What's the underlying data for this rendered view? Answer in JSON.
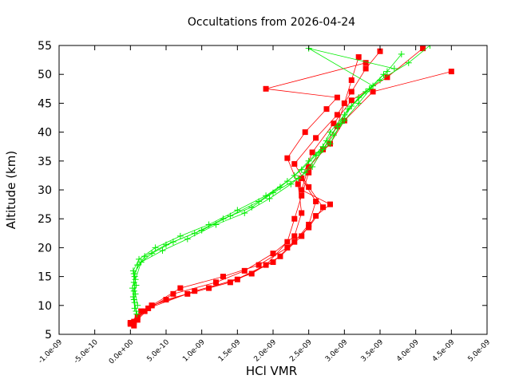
{
  "chart_data": {
    "type": "scatter",
    "title": "Occultations from 2026-04-24",
    "xlabel": "HCl VMR",
    "ylabel": "Altitude (km)",
    "xlim": [
      -1e-09,
      5e-09
    ],
    "ylim": [
      5,
      55
    ],
    "grid": false,
    "legend": "none",
    "x_tick_values": [
      -1e-09,
      -5e-10,
      0,
      5e-10,
      1e-09,
      1.5e-09,
      2e-09,
      2.5e-09,
      3e-09,
      3.5e-09,
      4e-09,
      4.5e-09,
      5e-09
    ],
    "x_tick_labels": [
      "-1.0e-09",
      "-5.0e-10",
      "0.0e+00",
      "5.0e-10",
      "1.0e-09",
      "1.5e-09",
      "2.0e-09",
      "2.5e-09",
      "3.0e-09",
      "3.5e-09",
      "4.0e-09",
      "4.5e-09",
      "5.0e-09"
    ],
    "y_tick_values": [
      5,
      10,
      15,
      20,
      25,
      30,
      35,
      40,
      45,
      50,
      55
    ],
    "y_tick_labels": [
      "5",
      "10",
      "15",
      "20",
      "25",
      "30",
      "35",
      "40",
      "45",
      "50",
      "55"
    ],
    "series": [
      {
        "marker": "square",
        "color": "#ff0000",
        "profiles": [
          {
            "x": [
              5e-11,
              1e-10,
              3e-10,
              8e-10,
              1.4e-09,
              1.9e-09,
              2.2e-09,
              2.3e-09,
              2.4e-09,
              2.5e-09,
              2.7e-09,
              2.9e-09,
              3e-09,
              3.1e-09,
              3.2e-09
            ],
            "y": [
              6.5,
              8,
              10,
              12,
              14,
              17,
              21,
              25,
              29,
              33,
              37,
              41,
              45,
              49,
              53
            ]
          },
          {
            "x": [
              0.0,
              1.5e-10,
              5e-10,
              1.1e-09,
              1.7e-09,
              2.1e-09,
              2.4e-09,
              2.6e-09,
              2.8e-09,
              2.4e-09,
              2.5e-09,
              2.8e-09,
              3e-09,
              3.4e-09,
              4.5e-09
            ],
            "y": [
              7,
              9,
              11,
              13,
              15.5,
              18.5,
              22,
              25.5,
              27.5,
              30,
              34,
              38,
              42,
              47,
              50.5
            ]
          },
          {
            "x": [
              1e-10,
              3e-10,
              7e-10,
              1.3e-09,
              1.8e-09,
              2.2e-09,
              2.5e-09,
              2.7e-09,
              2.5e-09,
              2.3e-09,
              2.6e-09,
              2.9e-09,
              3.1e-09,
              3.3e-09,
              3.5e-09
            ],
            "y": [
              7.5,
              10,
              13,
              15,
              17,
              20,
              23.5,
              27,
              30.5,
              34.5,
              39,
              43,
              47,
              51,
              54
            ]
          },
          {
            "x": [
              0.0,
              2e-10,
              6e-10,
              1.2e-09,
              1.6e-09,
              2e-09,
              2.3e-09,
              2.4e-09,
              2.35e-09,
              2.2e-09,
              2.45e-09,
              2.75e-09,
              2.9e-09,
              1.9e-09,
              3.3e-09
            ],
            "y": [
              6.8,
              9,
              12,
              14,
              16,
              19,
              22,
              26,
              31,
              35.5,
              40,
              44,
              46,
              47.5,
              52
            ]
          },
          {
            "x": [
              5e-11,
              2.5e-10,
              9e-10,
              1.5e-09,
              2e-09,
              2.3e-09,
              2.5e-09,
              2.6e-09,
              2.4e-09,
              2.55e-09,
              2.85e-09,
              3.1e-09,
              3.6e-09,
              4.1e-09
            ],
            "y": [
              7.2,
              9.5,
              12.5,
              14.5,
              17.5,
              21,
              24,
              28,
              32,
              36.5,
              41.5,
              45.5,
              49.5,
              54.5
            ]
          }
        ]
      },
      {
        "marker": "plus",
        "color": "#00ee00",
        "profiles": [
          {
            "x": [
              8e-11,
              5e-11,
              3e-11,
              6e-11,
              1e-10,
              3e-10,
              6e-10,
              1e-09,
              1.4e-09,
              1.8e-09,
              2.1e-09,
              2.3e-09,
              2.5e-09,
              2.7e-09,
              2.8e-09,
              3e-09,
              3.2e-09,
              3.5e-09,
              3.9e-09,
              4.2e-09
            ],
            "y": [
              9,
              11,
              13,
              15,
              17,
              19,
              21,
              23,
              25.5,
              28,
              30.5,
              32.5,
              35,
              37.5,
              40,
              43,
              46,
              49,
              52,
              55
            ]
          },
          {
            "x": [
              1e-10,
              7e-11,
              5e-11,
              4e-11,
              1.2e-10,
              3.5e-10,
              7e-10,
              1.1e-09,
              1.5e-09,
              1.9e-09,
              2.2e-09,
              2.4e-09,
              2.6e-09,
              2.75e-09,
              2.9e-09,
              3.05e-09,
              3.3e-09,
              3.6e-09,
              3.8e-09
            ],
            "y": [
              10,
              12,
              14,
              16,
              18,
              20,
              22,
              24,
              26.5,
              29,
              31.5,
              33.5,
              36,
              38.5,
              41,
              44,
              47,
              50.5,
              53.5
            ]
          },
          {
            "x": [
              6e-11,
              4e-11,
              8e-11,
              5e-11,
              2e-10,
              5e-10,
              9e-10,
              1.3e-09,
              1.7e-09,
              2e-09,
              2.35e-09,
              2.55e-09,
              2.7e-09,
              2.85e-09,
              3e-09,
              3.2e-09,
              3.4e-09,
              2.5e-09,
              3.7e-09
            ],
            "y": [
              9.5,
              11.5,
              13.5,
              15.5,
              18.5,
              20.5,
              22.5,
              25,
              27,
              29.5,
              32,
              34,
              37,
              39.5,
              42,
              45,
              48,
              54.5,
              51
            ]
          },
          {
            "x": [
              9e-11,
              6e-11,
              5e-11,
              7e-11,
              1.5e-10,
              4.5e-10,
              8e-10,
              1.2e-09,
              1.6e-09,
              1.95e-09,
              2.25e-09,
              2.45e-09,
              2.65e-09,
              2.8e-09,
              2.95e-09,
              3.1e-09,
              3.35e-09,
              3.55e-09
            ],
            "y": [
              8.5,
              10.5,
              12.5,
              14.5,
              17.5,
              19.5,
              21.5,
              24,
              26,
              28.5,
              31,
              33,
              36.5,
              38,
              41.5,
              44.5,
              47.5,
              50
            ]
          }
        ]
      }
    ]
  }
}
